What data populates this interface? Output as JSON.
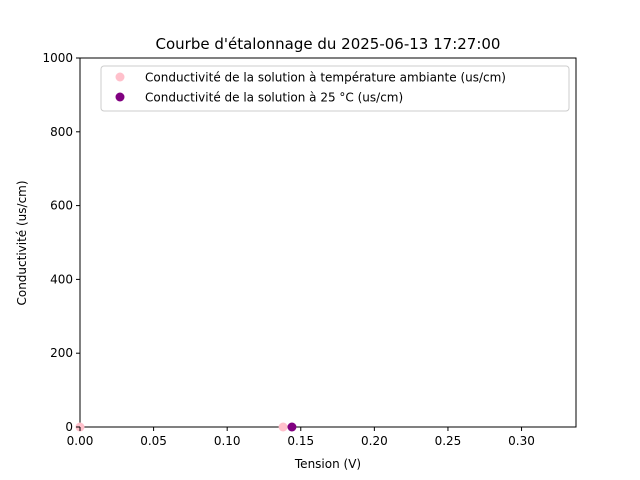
{
  "chart_data": {
    "type": "scatter",
    "title": "Courbe d'étalonnage du 2025-06-13 17:27:00",
    "xlabel": "Tension (V)",
    "ylabel": "Conductivité (us/cm)",
    "xlim": [
      0,
      0.337
    ],
    "ylim": [
      0,
      1000
    ],
    "xticks": [
      "0.00",
      "0.05",
      "0.10",
      "0.15",
      "0.20",
      "0.25",
      "0.30"
    ],
    "yticks": [
      "0",
      "200",
      "400",
      "600",
      "800",
      "1000"
    ],
    "grid": false,
    "legend_position": "top-right",
    "series": [
      {
        "name": "Conductivité de la solution à température ambiante (us/cm)",
        "color": "#ffc0cb",
        "points": [
          {
            "x": 0.0,
            "y": 0
          },
          {
            "x": 0.138,
            "y": 0
          }
        ]
      },
      {
        "name": "Conductivité de la solution à 25 °C (us/cm)",
        "color": "#800080",
        "points": [
          {
            "x": 0.144,
            "y": 0
          }
        ]
      }
    ]
  }
}
